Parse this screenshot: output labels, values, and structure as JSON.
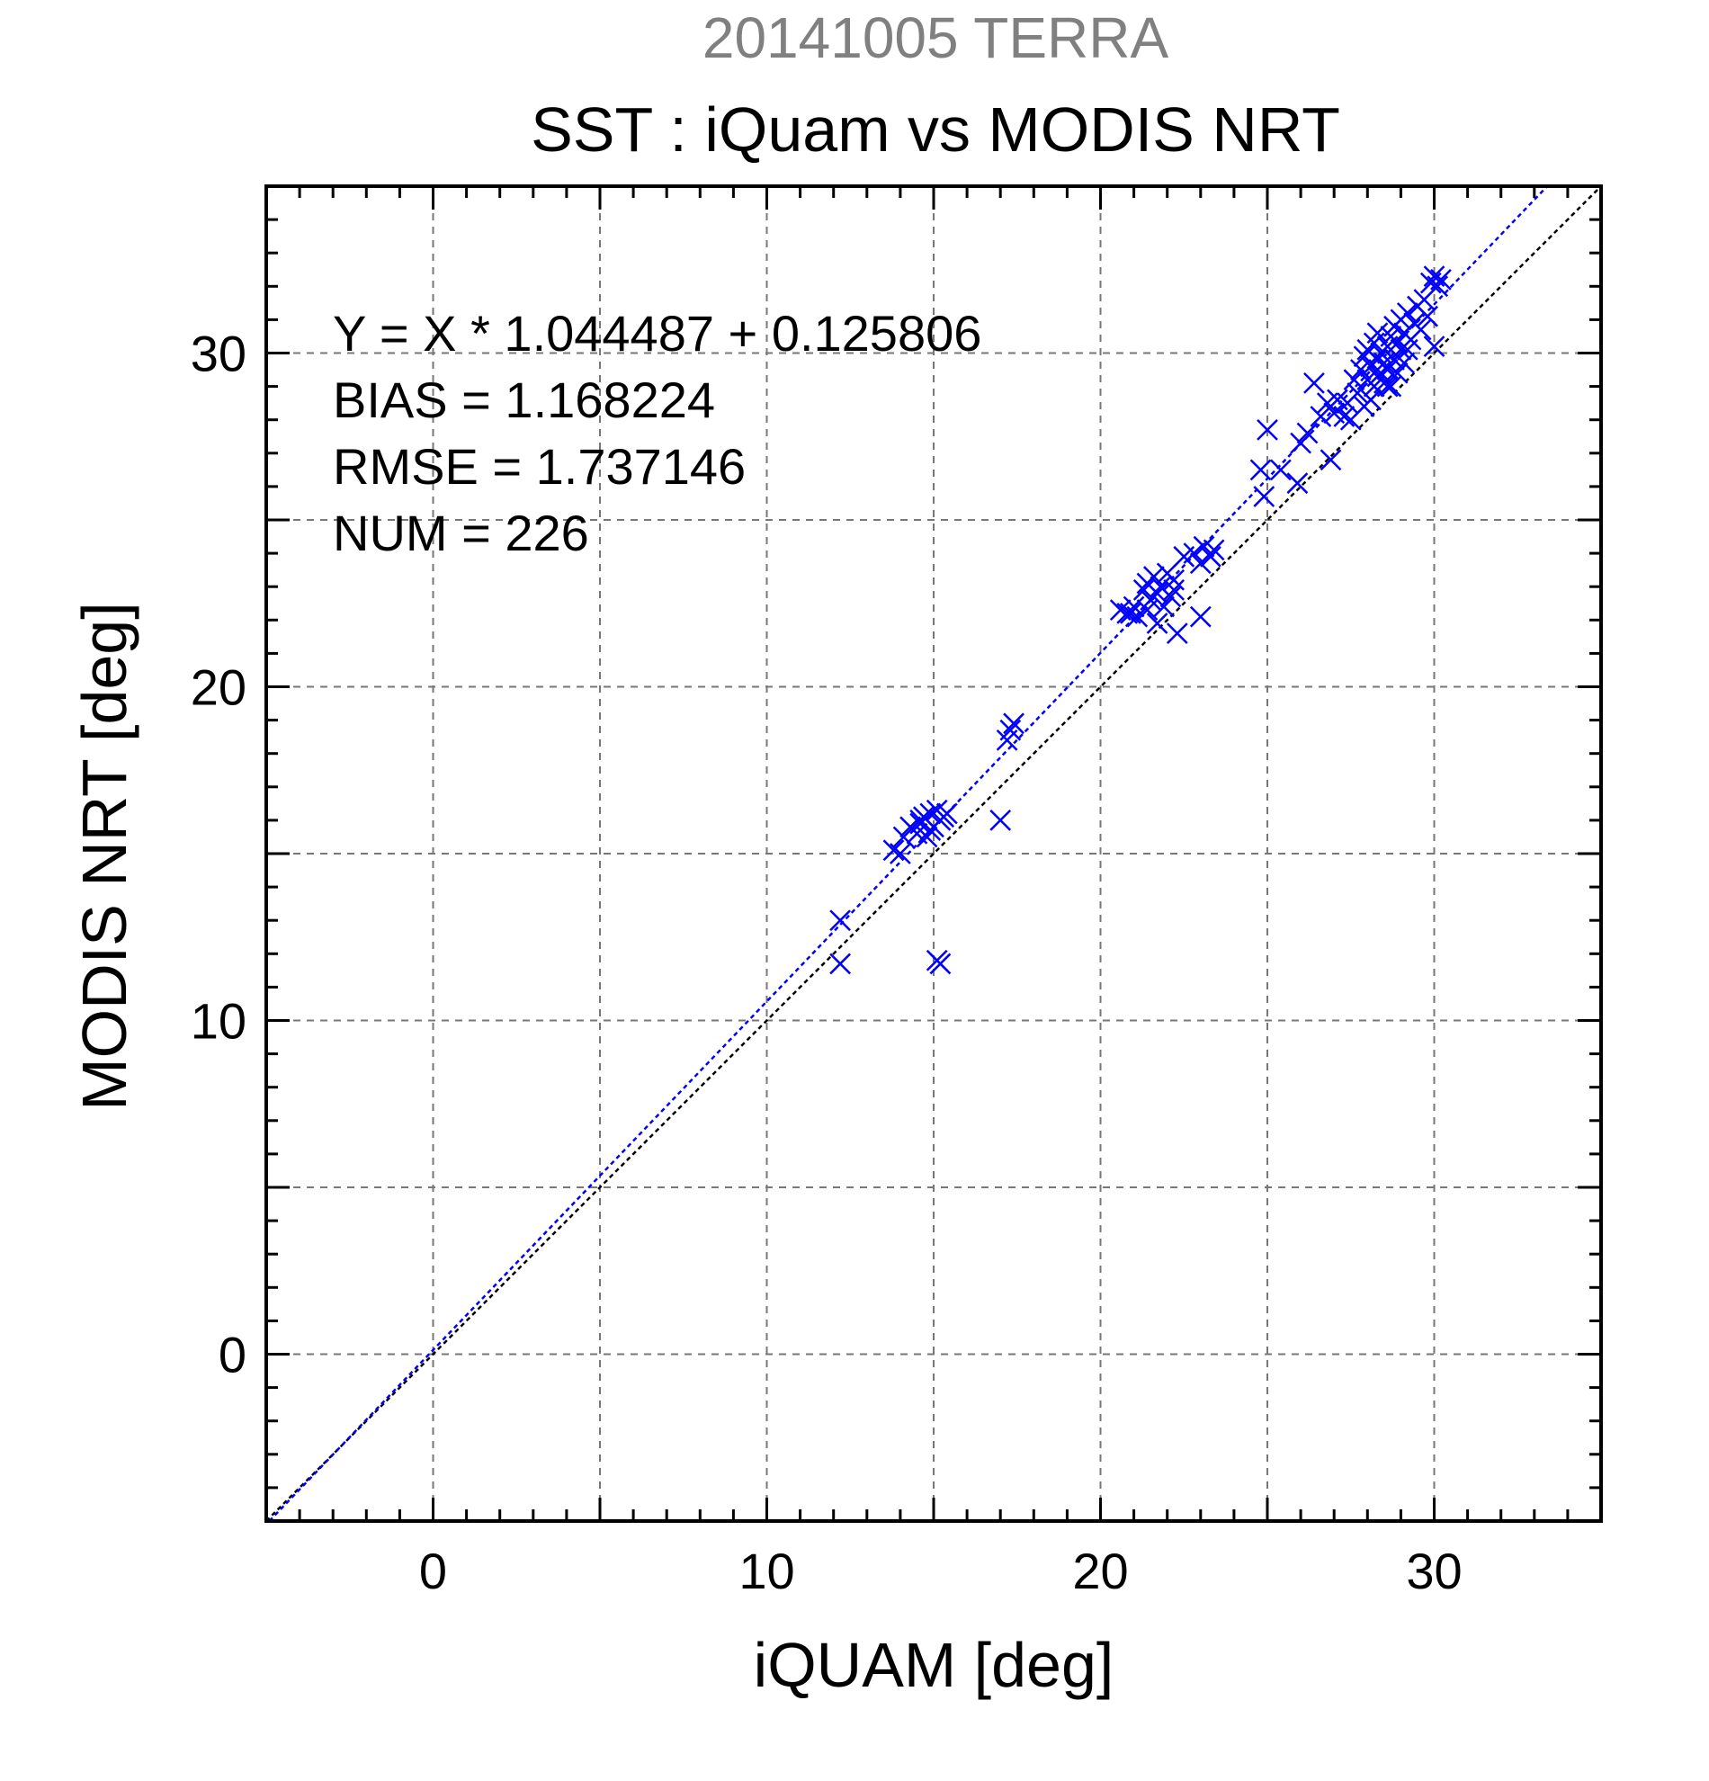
{
  "chart_data": {
    "type": "scatter",
    "title": "20141005 TERRA",
    "subtitle": "SST : iQuam vs MODIS NRT",
    "xlabel": "iQUAM [deg]",
    "ylabel": "MODIS NRT [deg]",
    "xlim": [
      -5,
      35
    ],
    "ylim": [
      -5,
      35
    ],
    "xticks": [
      0,
      10,
      20,
      30
    ],
    "yticks": [
      0,
      10,
      20,
      30
    ],
    "grid": true,
    "marker": "x",
    "colors": {
      "points": "#0000ff",
      "fit_line": "#0000ff",
      "identity_line": "#000000",
      "title": "#808080",
      "text": "#000000"
    },
    "stats": {
      "equation": "Y = X * 1.044487 + 0.125806",
      "bias": "BIAS = 1.168224",
      "rmse": "RMSE = 1.737146",
      "num": "NUM = 226"
    },
    "fit": {
      "slope": 1.044487,
      "intercept": 0.125806
    },
    "points": [
      [
        12.2,
        13.0
      ],
      [
        12.2,
        11.7
      ],
      [
        15.1,
        11.8
      ],
      [
        15.2,
        11.7
      ],
      [
        13.8,
        15.1
      ],
      [
        14.0,
        15.0
      ],
      [
        14.1,
        15.5
      ],
      [
        14.3,
        15.8
      ],
      [
        14.5,
        15.6
      ],
      [
        14.6,
        15.9
      ],
      [
        14.7,
        16.1
      ],
      [
        14.8,
        15.5
      ],
      [
        14.9,
        16.2
      ],
      [
        15.0,
        15.8
      ],
      [
        15.1,
        16.3
      ],
      [
        15.2,
        16.0
      ],
      [
        15.4,
        16.2
      ],
      [
        14.6,
        16.0
      ],
      [
        14.9,
        15.7
      ],
      [
        15.3,
        16.1
      ],
      [
        17.0,
        16.0
      ],
      [
        17.2,
        18.4
      ],
      [
        17.3,
        18.7
      ],
      [
        17.4,
        18.9
      ],
      [
        20.6,
        22.3
      ],
      [
        20.8,
        22.2
      ],
      [
        21.0,
        22.4
      ],
      [
        21.1,
        22.1
      ],
      [
        21.3,
        22.9
      ],
      [
        21.4,
        23.1
      ],
      [
        21.5,
        22.6
      ],
      [
        21.6,
        23.3
      ],
      [
        21.7,
        22.8
      ],
      [
        21.8,
        23.0
      ],
      [
        21.9,
        22.4
      ],
      [
        22.0,
        23.4
      ],
      [
        22.1,
        22.7
      ],
      [
        22.2,
        23.2
      ],
      [
        22.3,
        21.6
      ],
      [
        21.7,
        21.9
      ],
      [
        22.5,
        23.9
      ],
      [
        22.8,
        24.0
      ],
      [
        23.0,
        23.7
      ],
      [
        23.1,
        24.2
      ],
      [
        23.3,
        23.9
      ],
      [
        23.4,
        24.1
      ],
      [
        23.0,
        22.1
      ],
      [
        21.4,
        22.3
      ],
      [
        22.2,
        22.9
      ],
      [
        20.9,
        22.2
      ],
      [
        24.8,
        26.5
      ],
      [
        24.9,
        25.7
      ],
      [
        25.0,
        27.7
      ],
      [
        25.4,
        26.5
      ],
      [
        25.9,
        26.1
      ],
      [
        26.0,
        27.3
      ],
      [
        26.2,
        27.6
      ],
      [
        26.4,
        29.1
      ],
      [
        26.6,
        28.1
      ],
      [
        26.8,
        28.5
      ],
      [
        26.9,
        26.8
      ],
      [
        27.0,
        28.2
      ],
      [
        27.1,
        28.6
      ],
      [
        27.3,
        28.1
      ],
      [
        27.4,
        28.5
      ],
      [
        27.5,
        28.0
      ],
      [
        27.6,
        29.2
      ],
      [
        27.7,
        28.8
      ],
      [
        27.8,
        29.5
      ],
      [
        27.9,
        29.9
      ],
      [
        27.9,
        28.4
      ],
      [
        28.0,
        30.1
      ],
      [
        28.0,
        29.2
      ],
      [
        28.1,
        29.6
      ],
      [
        28.1,
        28.6
      ],
      [
        28.2,
        30.3
      ],
      [
        28.2,
        29.0
      ],
      [
        28.3,
        29.8
      ],
      [
        28.3,
        30.6
      ],
      [
        28.4,
        29.4
      ],
      [
        28.4,
        30.0
      ],
      [
        28.5,
        29.7
      ],
      [
        28.5,
        29.1
      ],
      [
        28.6,
        30.2
      ],
      [
        28.6,
        29.5
      ],
      [
        28.7,
        30.5
      ],
      [
        28.7,
        29.0
      ],
      [
        28.8,
        30.8
      ],
      [
        28.8,
        29.8
      ],
      [
        28.9,
        30.3
      ],
      [
        28.9,
        29.4
      ],
      [
        29.0,
        31.0
      ],
      [
        29.0,
        30.1
      ],
      [
        29.1,
        30.6
      ],
      [
        29.1,
        29.7
      ],
      [
        29.2,
        31.2
      ],
      [
        29.3,
        30.4
      ],
      [
        29.4,
        30.9
      ],
      [
        29.5,
        31.4
      ],
      [
        29.6,
        30.7
      ],
      [
        29.7,
        31.6
      ],
      [
        29.8,
        31.1
      ],
      [
        29.9,
        32.1
      ],
      [
        30.0,
        32.3
      ],
      [
        30.1,
        32.0
      ],
      [
        30.2,
        32.2
      ],
      [
        30.0,
        30.2
      ],
      [
        28.6,
        29.0
      ],
      [
        28.3,
        29.3
      ],
      [
        29.2,
        30.1
      ]
    ]
  }
}
